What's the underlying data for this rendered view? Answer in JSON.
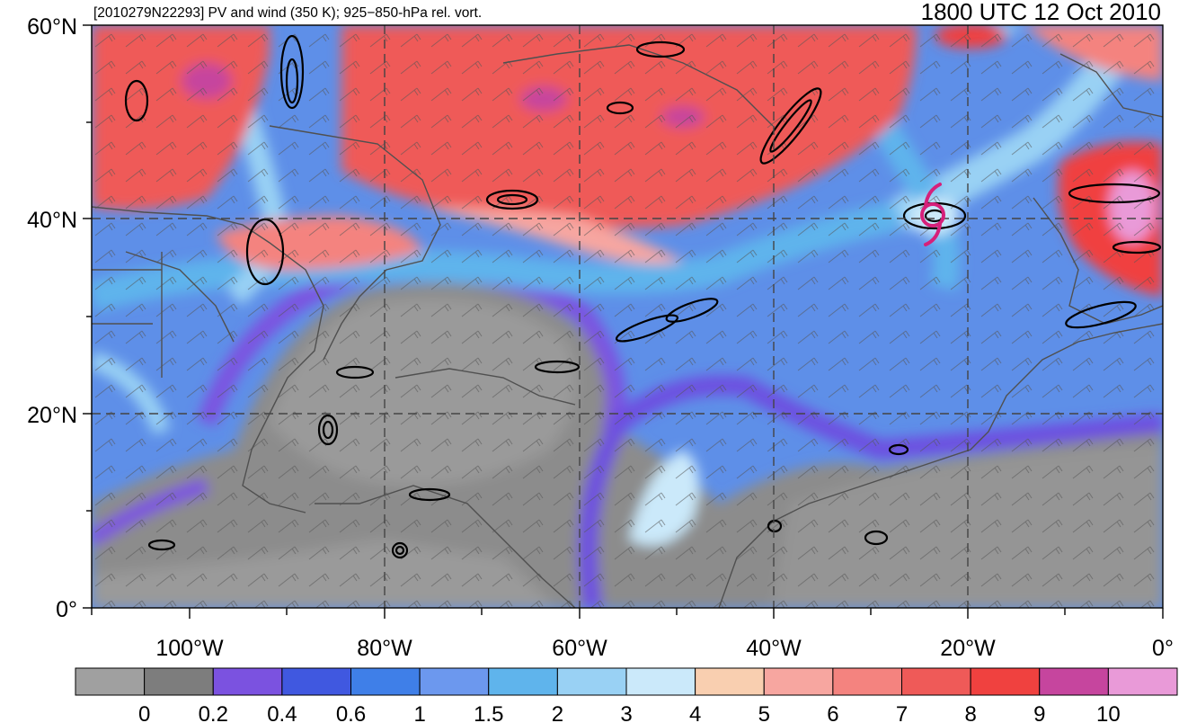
{
  "header": {
    "left_title": "[2010279N22293] PV and wind (350 K); 925−850-hPa rel. vort.",
    "right_title": "1800 UTC 12 Oct 2010"
  },
  "map": {
    "lat_labels": [
      "60°N",
      "40°N",
      "20°N",
      "0°"
    ],
    "lon_labels": [
      "100°W",
      "80°W",
      "60°W",
      "40°W",
      "20°W",
      "0°"
    ],
    "storm_symbol": "tropical-cyclone-icon",
    "storm_color": "#d6207a"
  },
  "colorbar": {
    "colors": [
      "#a0a0a0",
      "#7d7d7d",
      "#7b52e0",
      "#4058e0",
      "#3f7fe8",
      "#6c98ee",
      "#5fb4ec",
      "#99d1f4",
      "#cbe9fa",
      "#f9cfb0",
      "#f7a6a0",
      "#f4837f",
      "#ef5a58",
      "#f0413f",
      "#c6459e",
      "#e99ad8"
    ],
    "labels": [
      "0",
      "0.2",
      "0.4",
      "0.6",
      "1",
      "1.5",
      "2",
      "3",
      "4",
      "5",
      "6",
      "7",
      "8",
      "9",
      "10"
    ]
  }
}
